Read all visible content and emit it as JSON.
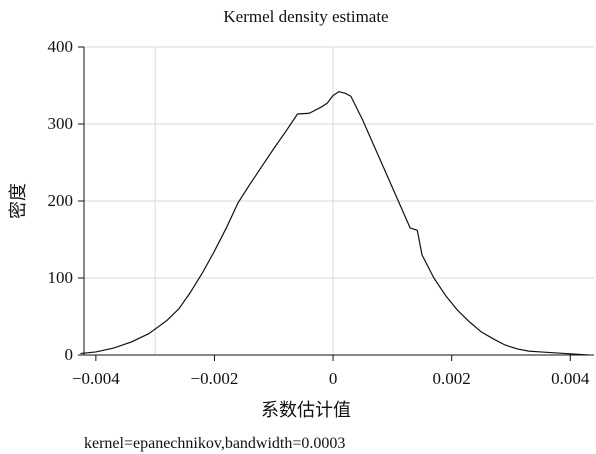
{
  "chart_data": {
    "type": "line",
    "title": "Kermel density estimate",
    "xlabel": "系数估计值",
    "ylabel": "密度",
    "note": "kernel=epanechnikov,bandwidth=0.0003",
    "xlim": [
      -0.0042,
      0.0044
    ],
    "ylim": [
      0,
      400
    ],
    "xticks": [
      -0.004,
      -0.002,
      0,
      0.002,
      0.004
    ],
    "xtick_labels": [
      "−0.004",
      "−0.002",
      "0",
      "0.002",
      "0.004"
    ],
    "yticks": [
      0,
      100,
      200,
      300,
      400
    ],
    "ytick_labels": [
      "0",
      "100",
      "200",
      "300",
      "400"
    ],
    "grid": {
      "horizontal": true,
      "vertical_x": [
        -0.003,
        0
      ]
    },
    "series": [
      {
        "x": [
          -0.00425,
          -0.004,
          -0.0037,
          -0.0034,
          -0.0031,
          -0.0028,
          -0.0026,
          -0.0024,
          -0.0022,
          -0.002,
          -0.0018,
          -0.0016,
          -0.0014,
          -0.0012,
          -0.001,
          -0.0008,
          -0.0006,
          -0.0004,
          -0.0002,
          -0.0001,
          0.0,
          0.0001,
          0.0002,
          0.0003,
          0.0005,
          0.0007,
          0.0009,
          0.0011,
          0.0013,
          0.00142,
          0.0015,
          0.0017,
          0.0019,
          0.0021,
          0.0023,
          0.0025,
          0.0027,
          0.0029,
          0.0031,
          0.0033,
          0.0035,
          0.0037,
          0.0039,
          0.0041,
          0.0043
        ],
        "y": [
          2,
          4,
          9,
          17,
          28,
          45,
          60,
          82,
          107,
          135,
          165,
          198,
          222,
          245,
          268,
          290,
          313,
          314,
          322,
          327,
          337,
          342,
          340,
          336,
          305,
          270,
          235,
          200,
          165,
          162,
          130,
          100,
          77,
          58,
          43,
          30,
          21,
          13,
          8,
          5,
          4,
          3,
          2,
          1,
          0
        ]
      }
    ],
    "colors": {
      "line": "#111111",
      "grid": "#d9d9d9"
    }
  }
}
